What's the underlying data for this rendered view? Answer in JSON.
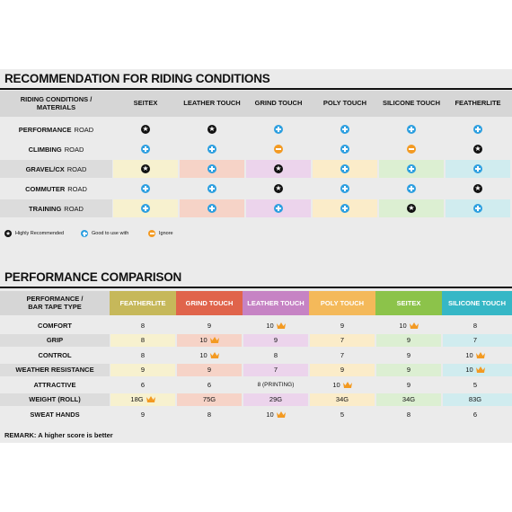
{
  "section1": {
    "title": "RECOMMENDATION FOR RIDING CONDITIONS",
    "corner_label_line1": "RIDING CONDITIONS /",
    "corner_label_line2": "MATERIALS",
    "columns": [
      "SEITEX",
      "LEATHER TOUCH",
      "GRIND TOUCH",
      "POLY TOUCH",
      "SILICONE TOUCH",
      "FEATHERLITE"
    ],
    "column_tints": [
      "#f7f1cf",
      "#f6d3c7",
      "#ecd4ec",
      "#fbecc9",
      "#dcefd2",
      "#d0ecef"
    ],
    "rows": [
      {
        "bold": "PERFORMANCE",
        "rest": "ROAD",
        "icons": [
          "star",
          "star",
          "plus",
          "plus",
          "plus",
          "plus"
        ],
        "shaded": false
      },
      {
        "bold": "CLIMBING",
        "rest": "ROAD",
        "icons": [
          "plus",
          "plus",
          "minus",
          "plus",
          "minus",
          "star"
        ],
        "shaded": false
      },
      {
        "bold": "GRAVEL/CX",
        "rest": "ROAD",
        "icons": [
          "star",
          "plus",
          "star",
          "plus",
          "plus",
          "plus"
        ],
        "shaded": true
      },
      {
        "bold": "COMMUTER",
        "rest": "ROAD",
        "icons": [
          "plus",
          "plus",
          "star",
          "plus",
          "plus",
          "star"
        ],
        "shaded": false
      },
      {
        "bold": "TRAINING",
        "rest": "ROAD",
        "icons": [
          "plus",
          "plus",
          "plus",
          "plus",
          "star",
          "plus"
        ],
        "shaded": true
      }
    ],
    "legend": [
      {
        "icon": "star",
        "label": "Highly Recommended"
      },
      {
        "icon": "plus",
        "label": "Good to use with"
      },
      {
        "icon": "minus",
        "label": "Ignore"
      }
    ]
  },
  "section2": {
    "title": "PERFORMANCE COMPARISON",
    "corner_label_line1": "PERFORMANCE /",
    "corner_label_line2": "BAR TAPE TYPE",
    "columns": [
      {
        "name": "FEATHERLITE",
        "color": "#c6b85a",
        "tint": "#f7f1cf"
      },
      {
        "name": "GRIND TOUCH",
        "color": "#e0644b",
        "tint": "#f6d3c7"
      },
      {
        "name": "LEATHER TOUCH",
        "color": "#c683c4",
        "tint": "#ecd4ec"
      },
      {
        "name": "POLY TOUCH",
        "color": "#f4b95a",
        "tint": "#fbecc9"
      },
      {
        "name": "SEITEX",
        "color": "#8cc34a",
        "tint": "#dcefd2"
      },
      {
        "name": "SILICONE TOUCH",
        "color": "#36b7c6",
        "tint": "#d0ecef"
      }
    ],
    "rows": [
      {
        "label": "COMFORT",
        "shaded": false,
        "values": [
          "8",
          "9",
          "10",
          "9",
          "10",
          "8"
        ],
        "crowns": [
          false,
          false,
          true,
          false,
          true,
          false
        ]
      },
      {
        "label": "GRIP",
        "shaded": true,
        "values": [
          "8",
          "10",
          "9",
          "7",
          "9",
          "7"
        ],
        "crowns": [
          false,
          true,
          false,
          false,
          false,
          false
        ]
      },
      {
        "label": "CONTROL",
        "shaded": false,
        "values": [
          "8",
          "10",
          "8",
          "7",
          "9",
          "10"
        ],
        "crowns": [
          false,
          true,
          false,
          false,
          false,
          true
        ]
      },
      {
        "label": "WEATHER RESISTANCE",
        "shaded": true,
        "values": [
          "9",
          "9",
          "7",
          "9",
          "9",
          "10"
        ],
        "crowns": [
          false,
          false,
          false,
          false,
          false,
          true
        ]
      },
      {
        "label": "ATTRACTIVE",
        "shaded": false,
        "values": [
          "6",
          "6",
          "8 (PRINTING)",
          "10",
          "9",
          "5"
        ],
        "crowns": [
          false,
          false,
          false,
          true,
          false,
          false
        ]
      },
      {
        "label": "WEIGHT (ROLL)",
        "shaded": true,
        "values": [
          "18G",
          "75G",
          "29G",
          "34G",
          "34G",
          "83G"
        ],
        "crowns": [
          true,
          false,
          false,
          false,
          false,
          false
        ]
      },
      {
        "label": "SWEAT HANDS",
        "shaded": false,
        "values": [
          "9",
          "8",
          "10",
          "5",
          "8",
          "6"
        ],
        "crowns": [
          false,
          false,
          true,
          false,
          false,
          false
        ]
      }
    ],
    "remark": "REMARK: A higher score is better",
    "crown_color": "#f39a22"
  }
}
